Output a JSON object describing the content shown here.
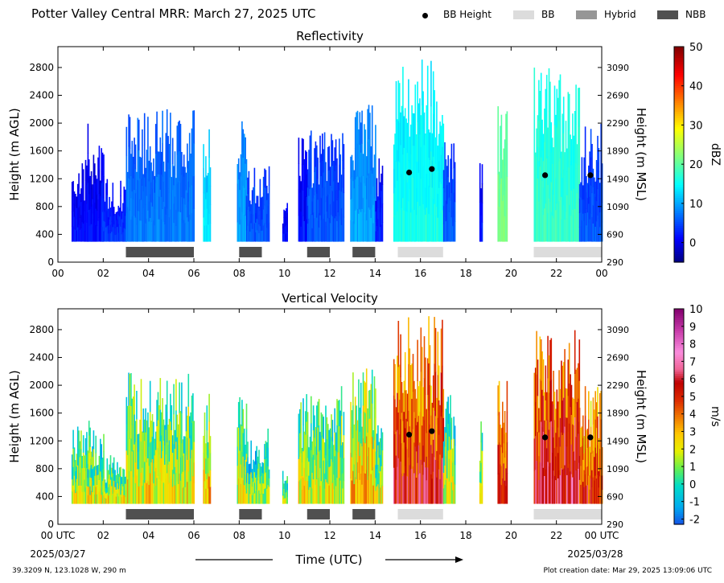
{
  "page": {
    "title": "Potter Valley Central MRR:  March 27, 2025 UTC",
    "legend": [
      {
        "label": "BB Height",
        "kind": "dot",
        "color": "#000000"
      },
      {
        "label": "BB",
        "kind": "box",
        "color": "#dcdcdc"
      },
      {
        "label": "Hybrid",
        "kind": "box",
        "color": "#969696"
      },
      {
        "label": "NBB",
        "kind": "box",
        "color": "#505050"
      }
    ],
    "xaxis_label": "Time (UTC)",
    "x_start_date": "2025/03/27",
    "x_end_date": "2025/03/28",
    "footer_location": "39.3209 N, 123.1028 W, 290 m",
    "footer_created": "Plot creation date: Mar 29, 2025 13:09:06 UTC"
  },
  "chart_data": [
    {
      "type": "heatmap",
      "title": "Reflectivity",
      "xlabel": "",
      "ylabel": "Height (m AGL)",
      "ylabel_right": "Height (m MSL)",
      "xlim": [
        0,
        24
      ],
      "ylim": [
        0,
        3100
      ],
      "x_ticks": [
        "00",
        "02",
        "04",
        "06",
        "08",
        "10",
        "12",
        "14",
        "16",
        "18",
        "20",
        "22",
        "00"
      ],
      "y_ticks": [
        0,
        400,
        800,
        1200,
        1600,
        2000,
        2400,
        2800
      ],
      "y_ticks_right": [
        290,
        690,
        1090,
        1490,
        1890,
        2290,
        2690,
        3090
      ],
      "colorbar": {
        "label": "dBZ",
        "min": -5,
        "max": 50,
        "ticks": [
          "0",
          "10",
          "20",
          "30",
          "40",
          "50"
        ],
        "tick_values": [
          0,
          10,
          20,
          30,
          40,
          50
        ],
        "colormap": "jet"
      },
      "echo_segments": [
        {
          "start": 0.6,
          "end": 1.5,
          "top": 1500,
          "value": 2
        },
        {
          "start": 1.3,
          "end": 2.0,
          "top": 2000,
          "value": 2
        },
        {
          "start": 1.9,
          "end": 3.0,
          "top": 1200,
          "value": 4
        },
        {
          "start": 3.0,
          "end": 6.0,
          "top": 2200,
          "value": 8
        },
        {
          "start": 6.4,
          "end": 6.7,
          "top": 2000,
          "value": 14
        },
        {
          "start": 7.9,
          "end": 8.3,
          "top": 2100,
          "value": 10
        },
        {
          "start": 8.3,
          "end": 9.3,
          "top": 1400,
          "value": 6
        },
        {
          "start": 9.9,
          "end": 10.1,
          "top": 900,
          "value": 2
        },
        {
          "start": 10.6,
          "end": 11.0,
          "top": 1900,
          "value": 2
        },
        {
          "start": 11.0,
          "end": 12.6,
          "top": 1900,
          "value": 6
        },
        {
          "start": 12.9,
          "end": 14.0,
          "top": 2400,
          "value": 10
        },
        {
          "start": 14.0,
          "end": 14.3,
          "top": 1500,
          "value": 3
        },
        {
          "start": 14.8,
          "end": 17.0,
          "top": 3000,
          "value": 16
        },
        {
          "start": 17.0,
          "end": 17.5,
          "top": 1900,
          "value": 6
        },
        {
          "start": 18.6,
          "end": 18.7,
          "top": 1600,
          "value": 2
        },
        {
          "start": 19.4,
          "end": 19.8,
          "top": 2300,
          "value": 22
        },
        {
          "start": 21.0,
          "end": 23.0,
          "top": 2800,
          "value": 18
        },
        {
          "start": 23.0,
          "end": 24.0,
          "top": 2000,
          "value": 6
        }
      ],
      "bb_height_points": [
        {
          "x": 15.5,
          "y": 1290
        },
        {
          "x": 16.5,
          "y": 1340
        },
        {
          "x": 21.5,
          "y": 1250
        },
        {
          "x": 23.5,
          "y": 1250
        }
      ],
      "classification_bars": [
        {
          "start": 3.0,
          "end": 6.0,
          "type": "NBB"
        },
        {
          "start": 8.0,
          "end": 9.0,
          "type": "NBB"
        },
        {
          "start": 11.0,
          "end": 12.0,
          "type": "NBB"
        },
        {
          "start": 13.0,
          "end": 14.0,
          "type": "NBB"
        },
        {
          "start": 15.0,
          "end": 17.0,
          "type": "BB"
        },
        {
          "start": 21.0,
          "end": 24.0,
          "type": "BB"
        }
      ]
    },
    {
      "type": "heatmap",
      "title": "Vertical Velocity",
      "xlabel": "Time (UTC)",
      "ylabel": "Height (m AGL)",
      "ylabel_right": "Height (m MSL)",
      "xlim": [
        0,
        24
      ],
      "ylim": [
        0,
        3100
      ],
      "x_ticks": [
        "00 UTC",
        "02",
        "04",
        "06",
        "08",
        "10",
        "12",
        "14",
        "16",
        "18",
        "20",
        "22",
        "00 UTC"
      ],
      "y_ticks": [
        0,
        400,
        800,
        1200,
        1600,
        2000,
        2400,
        2800
      ],
      "y_ticks_right": [
        290,
        690,
        1090,
        1490,
        1890,
        2290,
        2690,
        3090
      ],
      "colorbar": {
        "label": "m/s",
        "min": -2.3,
        "max": 10,
        "ticks": [
          "-2",
          "-1",
          "0",
          "1",
          "2",
          "3",
          "4",
          "5",
          "6",
          "7",
          "8",
          "9",
          "10"
        ],
        "tick_values": [
          -2,
          -1,
          0,
          1,
          2,
          3,
          4,
          5,
          6,
          7,
          8,
          9,
          10
        ]
      },
      "echo_segments": [
        {
          "start": 0.6,
          "end": 1.5,
          "top": 1500,
          "value": 2
        },
        {
          "start": 1.3,
          "end": 2.0,
          "top": 1400,
          "value": 2
        },
        {
          "start": 1.9,
          "end": 3.0,
          "top": 1000,
          "value": 2
        },
        {
          "start": 3.0,
          "end": 6.0,
          "top": 2200,
          "value": 2.2
        },
        {
          "start": 6.4,
          "end": 6.7,
          "top": 2000,
          "value": 3
        },
        {
          "start": 7.9,
          "end": 8.3,
          "top": 2000,
          "value": 2
        },
        {
          "start": 8.3,
          "end": 9.3,
          "top": 1400,
          "value": 1.5
        },
        {
          "start": 9.9,
          "end": 10.1,
          "top": 900,
          "value": 1.5
        },
        {
          "start": 10.6,
          "end": 11.0,
          "top": 1900,
          "value": 2
        },
        {
          "start": 11.0,
          "end": 12.6,
          "top": 2000,
          "value": 2
        },
        {
          "start": 12.9,
          "end": 14.0,
          "top": 2400,
          "value": 3
        },
        {
          "start": 14.0,
          "end": 14.3,
          "top": 1500,
          "value": 2
        },
        {
          "start": 14.8,
          "end": 17.0,
          "top": 3000,
          "value": 5.5
        },
        {
          "start": 17.0,
          "end": 17.5,
          "top": 1900,
          "value": 2
        },
        {
          "start": 18.6,
          "end": 18.7,
          "top": 1600,
          "value": 2
        },
        {
          "start": 19.4,
          "end": 19.8,
          "top": 2300,
          "value": 5.5
        },
        {
          "start": 21.0,
          "end": 23.0,
          "top": 2800,
          "value": 6
        },
        {
          "start": 23.0,
          "end": 24.0,
          "top": 2000,
          "value": 5
        }
      ],
      "bb_height_points": [
        {
          "x": 15.5,
          "y": 1290
        },
        {
          "x": 16.5,
          "y": 1340
        },
        {
          "x": 21.5,
          "y": 1250
        },
        {
          "x": 23.5,
          "y": 1250
        }
      ],
      "classification_bars": [
        {
          "start": 3.0,
          "end": 6.0,
          "type": "NBB"
        },
        {
          "start": 8.0,
          "end": 9.0,
          "type": "NBB"
        },
        {
          "start": 11.0,
          "end": 12.0,
          "type": "NBB"
        },
        {
          "start": 13.0,
          "end": 14.0,
          "type": "NBB"
        },
        {
          "start": 15.0,
          "end": 17.0,
          "type": "BB"
        },
        {
          "start": 21.0,
          "end": 24.0,
          "type": "BB"
        }
      ]
    }
  ]
}
